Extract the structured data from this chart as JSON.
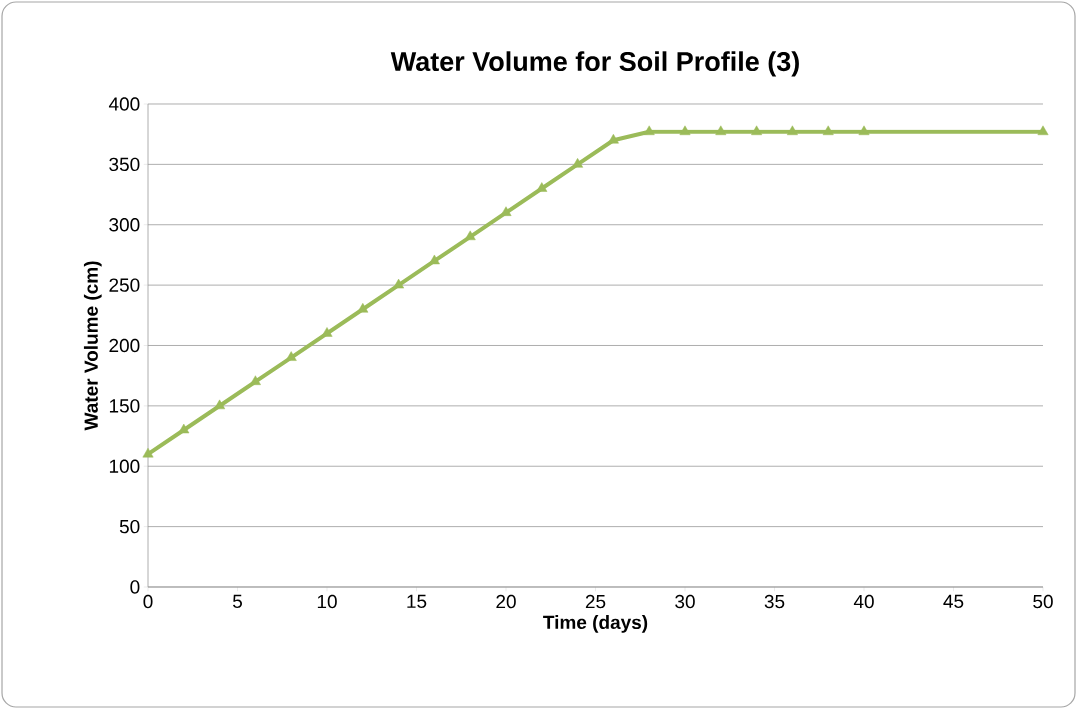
{
  "chart_data": {
    "type": "line",
    "title": "Water Volume for Soil Profile (3)",
    "xlabel": "Time (days)",
    "ylabel": "Water Volume (cm)",
    "x": [
      0,
      2,
      4,
      6,
      8,
      10,
      12,
      14,
      16,
      18,
      20,
      22,
      24,
      26,
      28,
      30,
      32,
      34,
      36,
      38,
      40,
      50
    ],
    "series": [
      {
        "color": "#9bbb59",
        "values": [
          110,
          130,
          150,
          170,
          190,
          210,
          230,
          250,
          270,
          290,
          310,
          330,
          350,
          370,
          377,
          377,
          377,
          377,
          377,
          377,
          377,
          377
        ]
      }
    ],
    "xlim": [
      0,
      50
    ],
    "xticks": [
      0,
      5,
      10,
      15,
      20,
      25,
      30,
      35,
      40,
      45,
      50
    ],
    "ylim": [
      0,
      400
    ],
    "yticks": [
      0,
      50,
      100,
      150,
      200,
      250,
      300,
      350,
      400
    ],
    "grid": "y",
    "marker": "triangle",
    "line_style": "solid"
  }
}
